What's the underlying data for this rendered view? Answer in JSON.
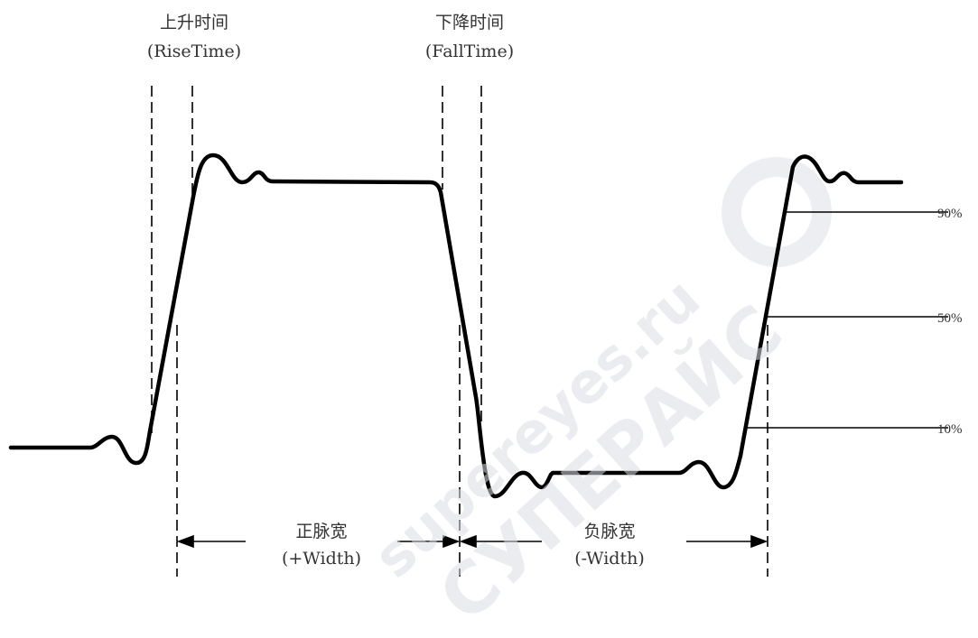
{
  "rise_time": {
    "line1": "上升时间",
    "line2": "(RiseTime)"
  },
  "fall_time": {
    "line1": "下降时间",
    "line2": "(FallTime)"
  },
  "positive_width": {
    "line1": "正脉宽",
    "line2": "(+Width)"
  },
  "negative_width": {
    "line1": "负脉宽",
    "line2": "(-Width)"
  },
  "levels": {
    "p90": "90%",
    "p50": "50%",
    "p10": "10%"
  },
  "watermark": {
    "text1": "supereyes.ru",
    "text2": "СУПЕРАЙС"
  },
  "colors": {
    "waveform": "#000000",
    "lines": "#000000",
    "watermark": "#d9dde4"
  }
}
